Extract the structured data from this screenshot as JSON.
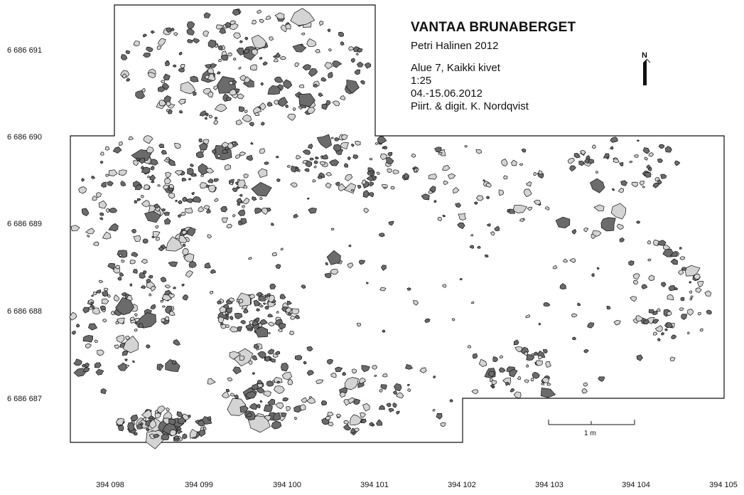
{
  "title": "VANTAA BRUNABERGET",
  "author": "Petri Halinen 2012",
  "meta": [
    "Alue 7, Kaikki kivet",
    "1:25",
    "04.-15.06.2012",
    "Piirt. & digit. K. Nordqvist"
  ],
  "north_label": "N",
  "y_axis_labels": [
    "6 686 691",
    "6 686 690",
    "6 686 689",
    "6 686 688",
    "6 686 687"
  ],
  "x_axis_labels": [
    "394 098",
    "394 099",
    "394 100",
    "394 101",
    "394 102",
    "394 103",
    "394 104",
    "394 105"
  ],
  "scale_label": "1 m",
  "colors": {
    "stone_dark": "#6b6b6b",
    "stone_light": "#d4d4d4",
    "outline": "#111111"
  }
}
